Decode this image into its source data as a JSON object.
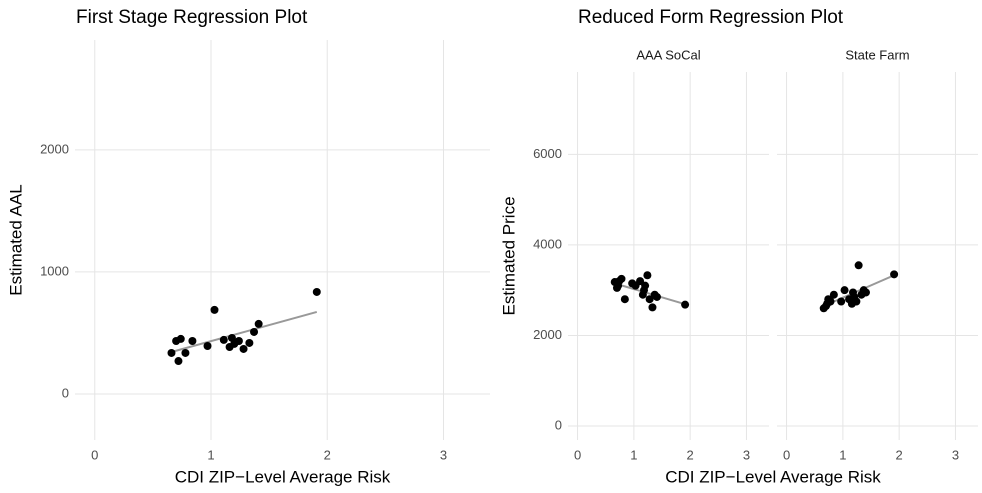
{
  "chart_data": [
    {
      "type": "scatter",
      "title": "First Stage Regression Plot",
      "x_label": "CDI ZIP−Level Average Risk",
      "y_label": "Estimated AAL",
      "xlim": [
        -0.17,
        3.4
      ],
      "xticks": [
        0,
        1,
        2,
        3
      ],
      "ylim": [
        -377,
        2900
      ],
      "yticks": [
        0,
        1000,
        2000
      ],
      "grid": true,
      "points": {
        "color": "#000000",
        "x": [
          0.66,
          0.7,
          0.74,
          0.72,
          0.78,
          0.84,
          0.97,
          1.03,
          1.11,
          1.16,
          1.18,
          1.2,
          1.24,
          1.28,
          1.33,
          1.37,
          1.41,
          1.91
        ],
        "y": [
          336,
          434,
          451,
          270,
          336,
          434,
          393,
          689,
          443,
          385,
          459,
          410,
          434,
          369,
          418,
          508,
          574,
          836
        ]
      },
      "fit": {
        "color": "#999999",
        "x": [
          0.66,
          1.91
        ],
        "y": [
          344,
          672
        ]
      }
    },
    {
      "type": "scatter",
      "title": "Reduced Form Regression Plot",
      "x_label": "CDI ZIP−Level Average Risk",
      "y_label": "Estimated Price",
      "xlim": [
        -0.17,
        3.4
      ],
      "xticks": [
        0,
        1,
        2,
        3
      ],
      "ylim": [
        -310,
        7820
      ],
      "yticks": [
        0,
        2000,
        4000,
        6000
      ],
      "grid": true,
      "facets": [
        {
          "label": "AAA SoCal",
          "points": {
            "color": "#000000",
            "x": [
              0.66,
              0.7,
              0.74,
              0.72,
              0.78,
              0.84,
              0.97,
              1.03,
              1.11,
              1.16,
              1.18,
              1.2,
              1.24,
              1.28,
              1.33,
              1.37,
              1.41,
              1.91
            ],
            "y": [
              3180,
              3050,
              3200,
              3100,
              3250,
              2800,
              3150,
              3100,
              3200,
              2900,
              3000,
              3100,
              3330,
              2800,
              2620,
              2900,
              2850,
              2680
            ]
          },
          "fit": {
            "color": "#999999",
            "x": [
              0.66,
              1.91
            ],
            "y": [
              3150,
              2690
            ]
          }
        },
        {
          "label": "State Farm",
          "points": {
            "color": "#000000",
            "x": [
              0.66,
              0.7,
              0.74,
              0.72,
              0.78,
              0.84,
              0.97,
              1.03,
              1.11,
              1.16,
              1.18,
              1.2,
              1.24,
              1.28,
              1.33,
              1.37,
              1.41,
              1.91
            ],
            "y": [
              2600,
              2650,
              2800,
              2700,
              2750,
              2900,
              2750,
              3000,
              2800,
              2700,
              2950,
              2850,
              2750,
              3550,
              2900,
              3000,
              2950,
              3350
            ]
          },
          "fit": {
            "color": "#999999",
            "x": [
              0.66,
              1.91
            ],
            "y": [
              2650,
              3330
            ]
          }
        }
      ]
    }
  ]
}
